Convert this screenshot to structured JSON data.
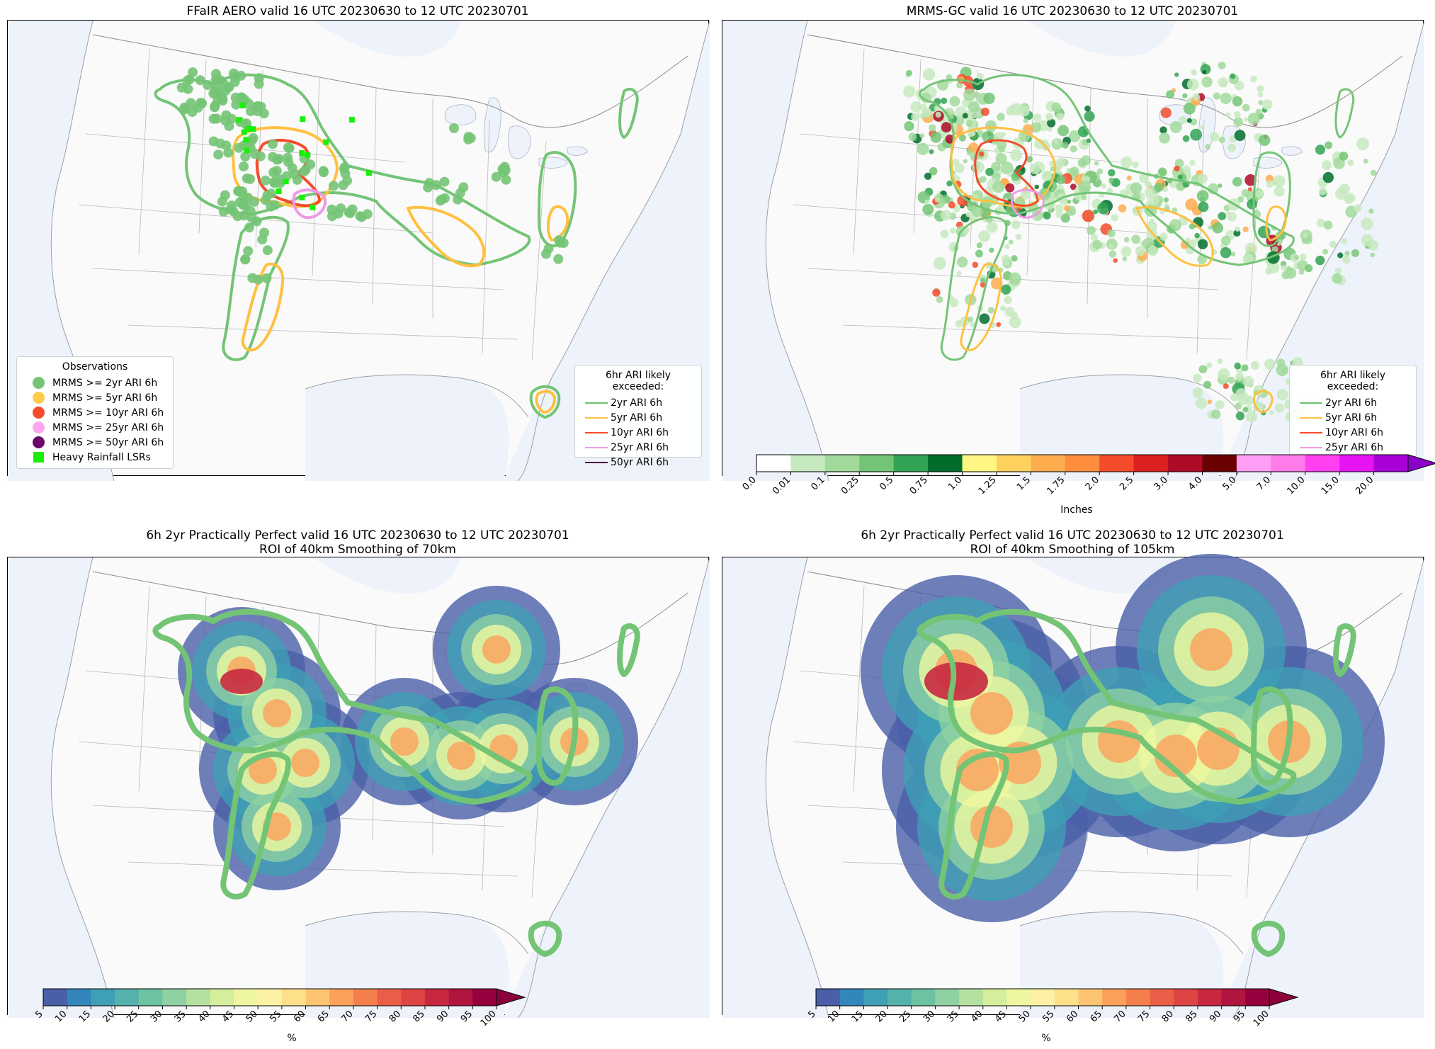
{
  "panels": {
    "top_left": {
      "title": "FFaIR AERO valid 16 UTC 20230630 to 12 UTC 20230701"
    },
    "top_right": {
      "title": "MRMS-GC valid 16 UTC 20230630 to 12 UTC 20230701",
      "colorbar": {
        "label": "Inches",
        "ticks": [
          "0.0",
          "0.01",
          "0.1",
          "0.25",
          "0.5",
          "0.75",
          "1.0",
          "1.25",
          "1.5",
          "1.75",
          "2.0",
          "2.5",
          "3.0",
          "4.0",
          "5.0",
          "7.0",
          "10.0",
          "15.0",
          "20.0"
        ],
        "colors": [
          "#ffffff",
          "#c7e9c0",
          "#a1d99b",
          "#74c476",
          "#31a354",
          "#006d2c",
          "#fff684",
          "#ffd25f",
          "#fdad4d",
          "#fd8d3c",
          "#f54b2b",
          "#dc1f1f",
          "#ad0b27",
          "#6b0000",
          "#ff9ef4",
          "#ff7be9",
          "#ff3ff0",
          "#e613f2",
          "#a800d6"
        ],
        "extend_color": "#8a00c9"
      }
    },
    "bottom_left": {
      "title": "6h 2yr Practically Perfect valid 16 UTC 20230630 to 12 UTC 20230701\nROI of 40km Smoothing of 70km",
      "colorbar": {
        "label": "%",
        "ticks": [
          "5",
          "10",
          "15",
          "20",
          "25",
          "30",
          "35",
          "40",
          "45",
          "50",
          "55",
          "60",
          "65",
          "70",
          "75",
          "80",
          "85",
          "90",
          "95",
          "100"
        ]
      }
    },
    "bottom_right": {
      "title": "6h 2yr Practically Perfect valid 16 UTC 20230630 to 12 UTC 20230701\nROI of 40km Smoothing of 105km",
      "colorbar": {
        "label": "%",
        "ticks": [
          "5",
          "10",
          "15",
          "20",
          "25",
          "30",
          "35",
          "40",
          "45",
          "50",
          "55",
          "60",
          "65",
          "70",
          "75",
          "80",
          "85",
          "90",
          "95",
          "100"
        ]
      }
    }
  },
  "pct_colors": [
    "#4a5fa8",
    "#3386bb",
    "#3f9fb5",
    "#54b1ab",
    "#6cc3a1",
    "#8fd1a2",
    "#b4e19f",
    "#d5ee9b",
    "#eef7a0",
    "#fdf1a6",
    "#fee08b",
    "#fdc472",
    "#fca05c",
    "#f57f4c",
    "#ea5e47",
    "#de4444",
    "#c8283f",
    "#b0143f",
    "#96003f"
  ],
  "pct_extend_color": "#8b003c",
  "observation_legend": {
    "title": "Observations",
    "items": [
      {
        "label": "MRMS >= 2yr ARI 6h",
        "color": "#74c476",
        "marker": "circle"
      },
      {
        "label": "MRMS >= 5yr ARI 6h",
        "color": "#ffcc4a",
        "marker": "circle"
      },
      {
        "label": "MRMS >= 10yr ARI 6h",
        "color": "#f54b2b",
        "marker": "circle"
      },
      {
        "label": "MRMS >= 25yr ARI 6h",
        "color": "#ffa6f2",
        "marker": "circle"
      },
      {
        "label": "MRMS >= 50yr ARI 6h",
        "color": "#6a0668",
        "marker": "circle"
      },
      {
        "label": "Heavy Rainfall LSRs",
        "color": "#19f00a",
        "marker": "square"
      }
    ]
  },
  "ari_legend": {
    "title": "6hr ARI likely exceeded:",
    "items": [
      {
        "label": "2yr ARI 6h",
        "color": "#6cc36c"
      },
      {
        "label": "5yr ARI 6h",
        "color": "#ffc040"
      },
      {
        "label": "10yr ARI 6h",
        "color": "#f54b2b"
      },
      {
        "label": "25yr ARI 6h",
        "color": "#f09ae6"
      },
      {
        "label": "50yr ARI 6h",
        "color": "#4a0040"
      }
    ]
  },
  "colors": {
    "map_land": "#fafafa",
    "map_water": "#eef3fb",
    "ari_2yr": "#74c476",
    "ari_5yr": "#ffc040",
    "ari_10yr": "#f54b2b",
    "ari_25yr": "#f09ae6"
  }
}
